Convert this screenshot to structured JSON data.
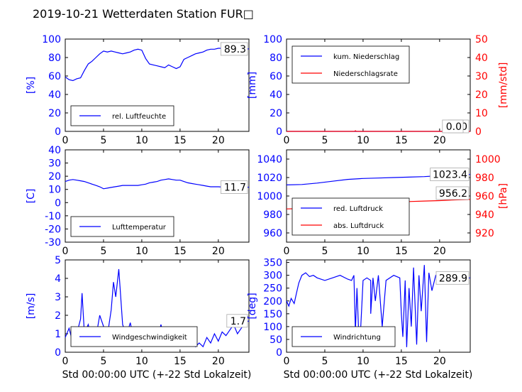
{
  "page_title": "2019-10-21 Wetterdaten Station FUR□",
  "x_axis": {
    "ticks": [
      0,
      5,
      10,
      15,
      20
    ],
    "range": [
      0,
      24
    ],
    "label": "Std 00:00:00 UTC (+-22 Std Lokalzeit)"
  },
  "colors": {
    "blue": "#0000ff",
    "red": "#ff0000",
    "light_blue": "#8080ff"
  },
  "chart_data": [
    {
      "id": "humidity",
      "type": "line",
      "ylabel": "[%]",
      "ylim": [
        0,
        100
      ],
      "yticks": [
        0,
        20,
        40,
        60,
        80,
        100
      ],
      "last_value_label": "89.3",
      "legend": [
        "rel. Luftfeuchte"
      ],
      "legend_loc": "lower-left",
      "series": [
        {
          "name": "rel. Luftfeuchte",
          "x": [
            0,
            0.5,
            1,
            1.5,
            2,
            2.5,
            3,
            3.5,
            4,
            4.5,
            5,
            5.5,
            6,
            6.5,
            7,
            7.5,
            8,
            8.5,
            9,
            9.5,
            10,
            10.5,
            11,
            11.5,
            12,
            12.5,
            13,
            13.5,
            14,
            14.5,
            15,
            15.5,
            16,
            16.5,
            17,
            17.5,
            18,
            18.5,
            19,
            19.5,
            20,
            20.5,
            21,
            21.5,
            22,
            22.5,
            23,
            23.5,
            24
          ],
          "y": [
            59,
            56,
            55,
            57,
            58,
            66,
            73,
            76,
            80,
            84,
            87,
            86,
            87,
            86,
            85,
            84,
            85,
            86,
            88,
            89,
            88,
            79,
            73,
            72,
            71,
            70,
            69,
            72,
            70,
            68,
            70,
            78,
            80,
            82,
            84,
            85,
            86,
            88,
            89,
            89,
            90,
            90,
            91,
            89,
            89,
            89.5,
            89.3,
            89.3,
            89.3
          ]
        }
      ]
    },
    {
      "id": "precip",
      "type": "line",
      "ylabel": "[mm]",
      "ylabel_right": "[mm/std]",
      "ylim": [
        0,
        100
      ],
      "yticks": [
        0,
        20,
        40,
        60,
        80,
        100
      ],
      "ylim_right": [
        0,
        50
      ],
      "yticks_right": [
        0,
        10,
        20,
        30,
        40,
        50
      ],
      "last_value_label": "0.0",
      "last_value_label_right": "0.0",
      "legend": [
        "kum. Niederschlag",
        "Niederschlagsrate"
      ],
      "legend_loc": "upper-left",
      "series": [
        {
          "name": "kum. Niederschlag",
          "x": [
            0,
            24
          ],
          "y": [
            0,
            0
          ]
        },
        {
          "name": "Niederschlagsrate",
          "x": [
            0,
            8.9,
            9,
            9.1,
            24
          ],
          "y": [
            0,
            0,
            0.4,
            0,
            0
          ]
        }
      ]
    },
    {
      "id": "temperature",
      "type": "line",
      "ylabel": "[C]",
      "ylim": [
        -30,
        40
      ],
      "yticks": [
        -30,
        -20,
        -10,
        0,
        10,
        20,
        30,
        40
      ],
      "last_value_label": "11.7",
      "legend": [
        "Lufttemperatur"
      ],
      "legend_loc": "lower-left",
      "series": [
        {
          "name": "Lufttemperatur",
          "x": [
            0,
            0.5,
            1,
            1.5,
            2,
            2.5,
            3,
            3.5,
            4,
            4.5,
            5,
            5.5,
            6,
            6.5,
            7,
            7.5,
            8,
            8.5,
            9,
            9.5,
            10,
            10.5,
            11,
            11.5,
            12,
            12.5,
            13,
            13.5,
            14,
            14.5,
            15,
            15.5,
            16,
            16.5,
            17,
            17.5,
            18,
            18.5,
            19,
            19.5,
            20,
            20.5,
            21,
            21.5,
            22,
            22.5,
            23,
            23.5,
            24
          ],
          "y": [
            16,
            17,
            17.5,
            17,
            16.5,
            16,
            15,
            14,
            13,
            12,
            10.5,
            11,
            11.5,
            12,
            12.5,
            13,
            13,
            13,
            13,
            13,
            13.5,
            14,
            15,
            15.5,
            16,
            17,
            17.5,
            18,
            17.5,
            17,
            17,
            16,
            15,
            14.5,
            14,
            13.5,
            13,
            12.5,
            12,
            12,
            12,
            11.8,
            11.7,
            11.7,
            11.7,
            11.7,
            11.7,
            11.7,
            11.7
          ]
        }
      ]
    },
    {
      "id": "pressure",
      "type": "line",
      "ylabel": "",
      "ylabel_right": "[hPa]",
      "ylim": [
        950,
        1050
      ],
      "yticks": [
        960,
        980,
        1000,
        1020,
        1040
      ],
      "ylim_right": [
        910,
        1010
      ],
      "yticks_right": [
        920,
        940,
        960,
        980,
        1000
      ],
      "last_value_label": "1023.4",
      "last_value_label_right": "956.2",
      "legend": [
        "red. Luftdruck",
        "abs. Luftdruck"
      ],
      "legend_loc": "lower-left",
      "series": [
        {
          "name": "red. Luftdruck",
          "x": [
            0,
            2,
            4,
            6,
            8,
            10,
            12,
            14,
            16,
            18,
            20,
            22,
            24
          ],
          "y": [
            1012,
            1012.5,
            1014,
            1016,
            1018,
            1019,
            1019.5,
            1020,
            1020.5,
            1021,
            1022,
            1023,
            1023.4
          ]
        },
        {
          "name": "abs. Luftdruck",
          "x": [
            0,
            2,
            4,
            6,
            8,
            10,
            12,
            14,
            16,
            18,
            20,
            22,
            24
          ],
          "y": [
            946,
            946.5,
            948,
            950,
            951.5,
            952.5,
            953,
            953.5,
            954,
            954.5,
            955,
            955.8,
            956.2
          ]
        }
      ]
    },
    {
      "id": "windspeed",
      "type": "line",
      "ylabel": "[m/s]",
      "ylim": [
        0,
        5
      ],
      "yticks": [
        0,
        1,
        2,
        3,
        4,
        5
      ],
      "last_value_label": "1.7",
      "legend": [
        "Windgeschwindigkeit"
      ],
      "legend_loc": "lower-center",
      "series": [
        {
          "name": "Windgeschwindigkeit",
          "x": [
            0,
            0.5,
            1,
            1.5,
            2,
            2.2,
            2.5,
            3,
            3.5,
            4,
            4.5,
            5,
            5.5,
            6,
            6.3,
            6.6,
            7,
            7.5,
            8,
            8.5,
            9,
            9.5,
            10,
            10.5,
            11,
            11.5,
            12,
            12.5,
            13,
            13.5,
            14,
            14.5,
            15,
            15.5,
            16,
            16.5,
            17,
            17.5,
            18,
            18.5,
            19,
            19.5,
            20,
            20.5,
            21,
            21.5,
            22,
            22.5,
            23,
            23.5,
            24
          ],
          "y": [
            0.8,
            1.3,
            0.5,
            1.0,
            1.8,
            3.2,
            1.0,
            1.5,
            0.6,
            0.8,
            2.0,
            1.4,
            0.9,
            2.3,
            3.8,
            3.0,
            4.5,
            1.5,
            0.9,
            1.6,
            0.6,
            1.2,
            0.4,
            1.0,
            0.5,
            1.2,
            0.6,
            1.5,
            0.7,
            1.0,
            0.5,
            1.2,
            0.6,
            1.3,
            0.4,
            0.6,
            0.3,
            0.5,
            0.3,
            0.8,
            0.5,
            1.0,
            0.6,
            1.1,
            0.9,
            1.2,
            1.5,
            1.0,
            1.3,
            1.6,
            1.7
          ]
        }
      ]
    },
    {
      "id": "winddir",
      "type": "line",
      "ylabel": "[deg]",
      "ylim": [
        0,
        360
      ],
      "yticks": [
        0,
        50,
        100,
        150,
        200,
        250,
        300,
        350
      ],
      "last_value_label": "289.9",
      "legend": [
        "Windrichtung"
      ],
      "legend_loc": "lower-left",
      "series": [
        {
          "name": "Windrichtung",
          "x": [
            0,
            0.3,
            0.6,
            1,
            1.3,
            1.6,
            2,
            2.5,
            3,
            3.5,
            4,
            5,
            6,
            7,
            8,
            8.5,
            8.8,
            9,
            9.2,
            9.4,
            9.6,
            10,
            10.5,
            11,
            11,
            11.3,
            11.6,
            12,
            12.5,
            13,
            14,
            14.8,
            15,
            15.2,
            15.5,
            15.7,
            16,
            16.3,
            16.6,
            17,
            17.3,
            17.6,
            18,
            18.3,
            18.6,
            19,
            19.5,
            20,
            21,
            22,
            23,
            24
          ],
          "y": [
            200,
            180,
            210,
            190,
            230,
            270,
            300,
            310,
            295,
            300,
            290,
            280,
            290,
            300,
            285,
            280,
            300,
            80,
            250,
            100,
            40,
            280,
            290,
            280,
            150,
            290,
            200,
            300,
            100,
            280,
            300,
            290,
            150,
            60,
            280,
            20,
            250,
            100,
            330,
            30,
            300,
            160,
            340,
            40,
            310,
            240,
            300,
            290,
            295,
            290,
            288,
            289.9
          ]
        }
      ]
    }
  ]
}
